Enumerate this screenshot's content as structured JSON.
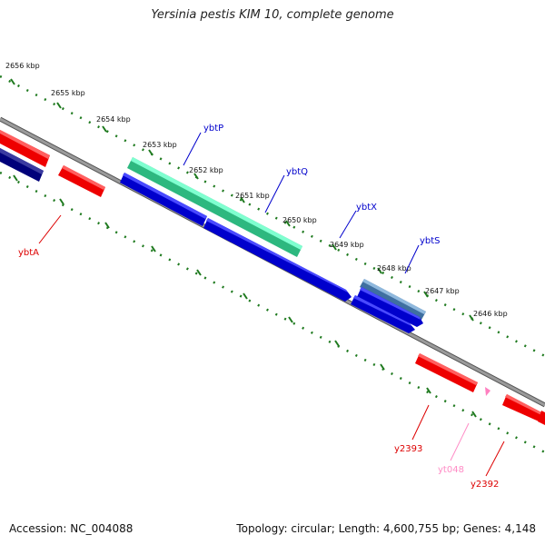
{
  "title": "Yersinia pestis KIM 10, complete genome",
  "footer": {
    "accession": "Accession: NC_004088",
    "summary": "Topology: circular; Length: 4,600,755 bp; Genes: 4,148"
  },
  "colors": {
    "backbone": "#808080",
    "tick": "#1f7a1f",
    "forward_gene": "#0000ee",
    "reverse_gene": "#ee0000",
    "trna": "#ff80c0"
  },
  "kbp_labels": [
    "2656 kbp",
    "2655 kbp",
    "2654 kbp",
    "2653 kbp",
    "2652 kbp",
    "2651 kbp",
    "2650 kbp",
    "2649 kbp",
    "2648 kbp",
    "2647 kbp",
    "2646 kbp"
  ],
  "genes": [
    {
      "name": "ybtP",
      "color": "#0000cc"
    },
    {
      "name": "ybtQ",
      "color": "#0000cc"
    },
    {
      "name": "ybtX",
      "color": "#0000cc"
    },
    {
      "name": "ybtS",
      "color": "#0000cc"
    },
    {
      "name": "ybtA",
      "color": "#dd0000"
    },
    {
      "name": "y2393",
      "color": "#dd0000"
    },
    {
      "name": "yt048",
      "color": "#ff8cc6"
    },
    {
      "name": "y2392",
      "color": "#dd0000"
    }
  ]
}
